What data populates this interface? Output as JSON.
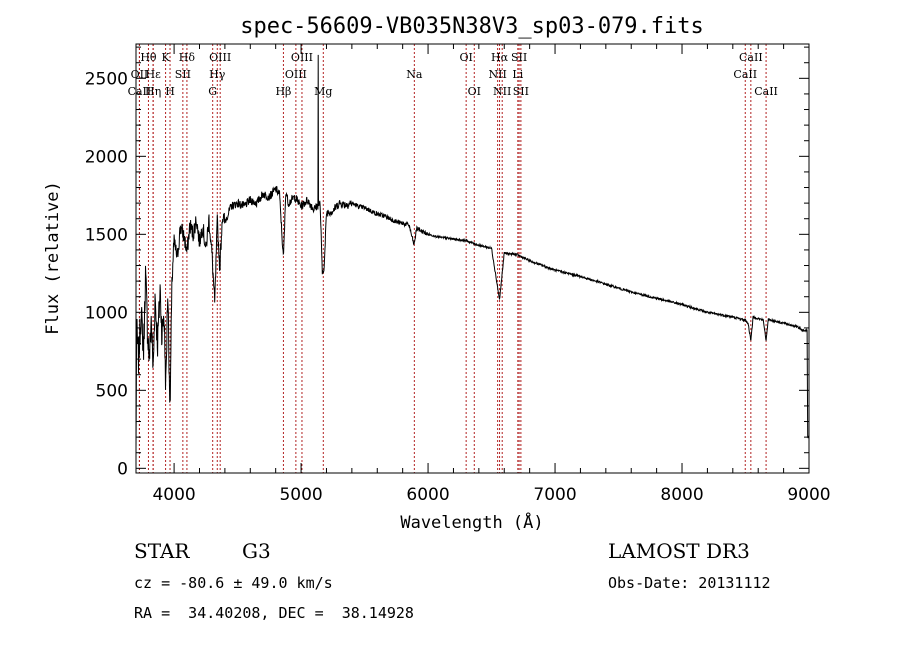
{
  "chart_data": {
    "type": "line",
    "title": "spec-56609-VB035N38V3_sp03-079.fits",
    "xlabel": "Wavelength (Å)",
    "ylabel": "Flux (relative)",
    "xlim": [
      3700,
      9000
    ],
    "ylim": [
      -30,
      2720
    ],
    "x_ticks": [
      4000,
      5000,
      6000,
      7000,
      8000,
      9000
    ],
    "y_ticks": [
      0,
      500,
      1000,
      1500,
      2000,
      2500
    ],
    "spectrum_anchors": [
      [
        3700,
        100
      ],
      [
        3705,
        880
      ],
      [
        3720,
        700
      ],
      [
        3740,
        1000
      ],
      [
        3760,
        760
      ],
      [
        3775,
        1250
      ],
      [
        3790,
        900
      ],
      [
        3805,
        700
      ],
      [
        3820,
        960
      ],
      [
        3835,
        620
      ],
      [
        3850,
        1100
      ],
      [
        3870,
        800
      ],
      [
        3890,
        1150
      ],
      [
        3905,
        850
      ],
      [
        3920,
        1000
      ],
      [
        3935,
        520
      ],
      [
        3950,
        1150
      ],
      [
        3968,
        380
      ],
      [
        3985,
        1250
      ],
      [
        4000,
        1450
      ],
      [
        4025,
        1350
      ],
      [
        4050,
        1550
      ],
      [
        4080,
        1480
      ],
      [
        4101,
        1380
      ],
      [
        4125,
        1560
      ],
      [
        4150,
        1500
      ],
      [
        4175,
        1600
      ],
      [
        4200,
        1450
      ],
      [
        4225,
        1560
      ],
      [
        4250,
        1400
      ],
      [
        4275,
        1600
      ],
      [
        4300,
        1350
      ],
      [
        4320,
        1050
      ],
      [
        4340,
        1580
      ],
      [
        4360,
        1280
      ],
      [
        4380,
        1620
      ],
      [
        4400,
        1580
      ],
      [
        4450,
        1680
      ],
      [
        4500,
        1700
      ],
      [
        4550,
        1680
      ],
      [
        4600,
        1720
      ],
      [
        4650,
        1700
      ],
      [
        4700,
        1760
      ],
      [
        4750,
        1740
      ],
      [
        4800,
        1790
      ],
      [
        4830,
        1760
      ],
      [
        4861,
        1340
      ],
      [
        4880,
        1780
      ],
      [
        4900,
        1700
      ],
      [
        4950,
        1740
      ],
      [
        5000,
        1680
      ],
      [
        5050,
        1720
      ],
      [
        5100,
        1660
      ],
      [
        5150,
        1700
      ],
      [
        5167,
        1250
      ],
      [
        5183,
        1300
      ],
      [
        5200,
        1640
      ],
      [
        5250,
        1650
      ],
      [
        5300,
        1700
      ],
      [
        5350,
        1690
      ],
      [
        5400,
        1700
      ],
      [
        5450,
        1680
      ],
      [
        5500,
        1670
      ],
      [
        5550,
        1650
      ],
      [
        5600,
        1630
      ],
      [
        5650,
        1620
      ],
      [
        5700,
        1600
      ],
      [
        5750,
        1580
      ],
      [
        5800,
        1570
      ],
      [
        5850,
        1560
      ],
      [
        5890,
        1430
      ],
      [
        5910,
        1540
      ],
      [
        5950,
        1520
      ],
      [
        6000,
        1500
      ],
      [
        6100,
        1480
      ],
      [
        6200,
        1470
      ],
      [
        6300,
        1460
      ],
      [
        6400,
        1430
      ],
      [
        6500,
        1410
      ],
      [
        6563,
        1080
      ],
      [
        6600,
        1380
      ],
      [
        6700,
        1370
      ],
      [
        6800,
        1330
      ],
      [
        6900,
        1300
      ],
      [
        7000,
        1270
      ],
      [
        7200,
        1230
      ],
      [
        7400,
        1180
      ],
      [
        7600,
        1130
      ],
      [
        7800,
        1090
      ],
      [
        8000,
        1050
      ],
      [
        8200,
        1000
      ],
      [
        8400,
        970
      ],
      [
        8498,
        950
      ],
      [
        8520,
        930
      ],
      [
        8542,
        820
      ],
      [
        8560,
        970
      ],
      [
        8600,
        960
      ],
      [
        8640,
        950
      ],
      [
        8662,
        820
      ],
      [
        8680,
        955
      ],
      [
        8800,
        930
      ],
      [
        8900,
        910
      ],
      [
        8960,
        880
      ],
      [
        8985,
        890
      ],
      [
        8990,
        200
      ],
      [
        9000,
        200
      ]
    ],
    "spike": {
      "x": 5135,
      "y": 2650
    },
    "spectral_lines": [
      {
        "label": "Hθ",
        "x": 3798,
        "row": 0
      },
      {
        "label": "OII",
        "x": 3727,
        "row": 1
      },
      {
        "label": "CaII",
        "x": 3727,
        "row": 2
      },
      {
        "label": "Hε",
        "x": 3835,
        "row": 1
      },
      {
        "label": "Hη",
        "x": 3835,
        "row": 2
      },
      {
        "label": "K",
        "x": 3933,
        "row": 0
      },
      {
        "label": "H",
        "x": 3968,
        "row": 2
      },
      {
        "label": "SII",
        "x": 4069,
        "row": 1
      },
      {
        "label": "Hδ",
        "x": 4101,
        "row": 0
      },
      {
        "label": "G",
        "x": 4304,
        "row": 2
      },
      {
        "label": "OIII",
        "x": 4363,
        "row": 0
      },
      {
        "label": "Hγ",
        "x": 4340,
        "row": 1
      },
      {
        "label": "Hβ",
        "x": 4861,
        "row": 2
      },
      {
        "label": "OIII",
        "x": 4959,
        "row": 1
      },
      {
        "label": "OIII",
        "x": 5007,
        "row": 0
      },
      {
        "label": "Mg",
        "x": 5175,
        "row": 2
      },
      {
        "label": "Na",
        "x": 5892,
        "row": 1
      },
      {
        "label": "OI",
        "x": 6300,
        "row": 0
      },
      {
        "label": "OI",
        "x": 6364,
        "row": 2
      },
      {
        "label": "Hα",
        "x": 6563,
        "row": 0
      },
      {
        "label": "NII",
        "x": 6548,
        "row": 1
      },
      {
        "label": "NII",
        "x": 6584,
        "row": 2
      },
      {
        "label": "SII",
        "x": 6717,
        "row": 0
      },
      {
        "label": "Li",
        "x": 6707,
        "row": 1
      },
      {
        "label": "SII",
        "x": 6731,
        "row": 2
      },
      {
        "label": "CaII",
        "x": 8542,
        "row": 0
      },
      {
        "label": "CaII",
        "x": 8498,
        "row": 1
      },
      {
        "label": "CaII",
        "x": 8662,
        "row": 2
      }
    ],
    "colors": {
      "spectrum": "#000000",
      "line_markers": "#b22222",
      "axes": "#000000"
    }
  },
  "info": {
    "object_class": "STAR",
    "subclass": "G3",
    "survey": "LAMOST DR3",
    "redshift_text": "cz = -80.6 ± 49.0 km/s",
    "obs_date_text": "Obs-Date: 20131112",
    "coords_text": "RA =  34.40208, DEC =  38.14928"
  }
}
